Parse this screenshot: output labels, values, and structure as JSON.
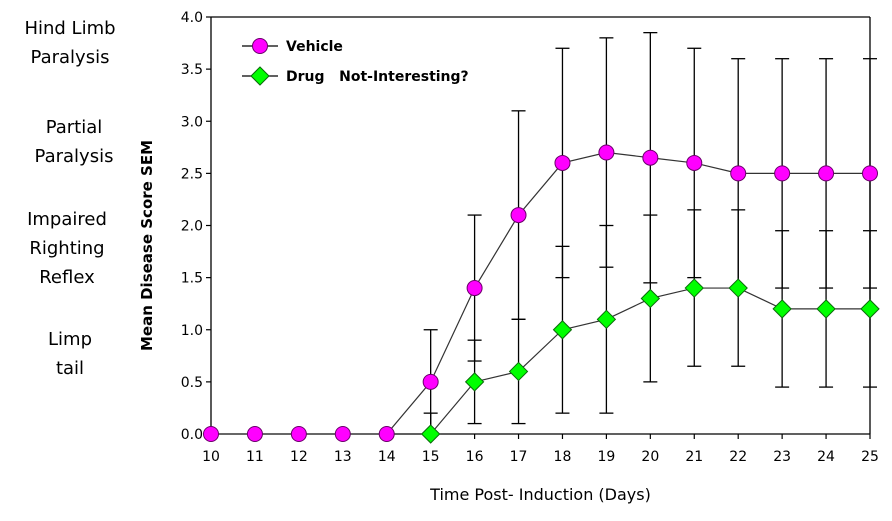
{
  "severity_labels": [
    {
      "lines": [
        "Hind Limb",
        "Paralysis"
      ],
      "score": 4.0
    },
    {
      "lines": [
        "Partial",
        "Paralysis"
      ],
      "score": 3.0
    },
    {
      "lines": [
        "Impaired",
        "Righting",
        "Reflex"
      ],
      "score": 2.0
    },
    {
      "lines": [
        "Limp",
        "tail"
      ],
      "score": 1.0
    }
  ],
  "chart_data": {
    "type": "line",
    "title": "",
    "xlabel": "Time Post- Induction (Days)",
    "ylabel": "Mean Disease Score SEM",
    "x": [
      10,
      11,
      12,
      13,
      14,
      15,
      16,
      17,
      18,
      19,
      20,
      21,
      22,
      23,
      24,
      25
    ],
    "xlim": [
      10,
      25
    ],
    "ylim": [
      0,
      4.0
    ],
    "xticks": [
      "10",
      "11",
      "12",
      "13",
      "14",
      "15",
      "16",
      "17",
      "18",
      "19",
      "20",
      "21",
      "22",
      "23",
      "24",
      "25"
    ],
    "yticks": [
      "0.0",
      "0.5",
      "1.0",
      "1.5",
      "2.0",
      "2.5",
      "3.0",
      "3.5",
      "4.0"
    ],
    "grid": false,
    "legend_position": "top-left",
    "series": [
      {
        "name": "Vehicle",
        "marker": "circle",
        "color": "#ff00ff",
        "values": [
          0,
          0,
          0,
          0,
          0,
          0.5,
          1.4,
          2.1,
          2.6,
          2.7,
          2.65,
          2.6,
          2.5,
          2.5,
          2.5,
          2.5
        ],
        "error": [
          0,
          0,
          0,
          0,
          0,
          0.5,
          0.7,
          1.0,
          1.1,
          1.1,
          1.2,
          1.1,
          1.1,
          1.1,
          1.1,
          1.1
        ]
      },
      {
        "name": "Drug   Not-Interesting?",
        "marker": "diamond",
        "color": "#00ff00",
        "values": [
          null,
          null,
          null,
          null,
          null,
          0,
          0.5,
          0.6,
          1.0,
          1.1,
          1.3,
          1.4,
          1.4,
          1.2,
          1.2,
          1.2
        ],
        "error": [
          null,
          null,
          null,
          null,
          null,
          0.2,
          0.4,
          0.5,
          0.8,
          0.9,
          0.8,
          0.75,
          0.75,
          0.75,
          0.75,
          0.75
        ]
      }
    ]
  }
}
